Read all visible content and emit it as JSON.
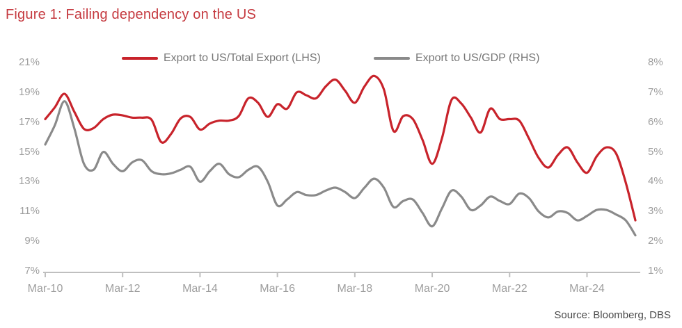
{
  "title": "Figure 1: Failing dependency on the US",
  "source": "Source: Bloomberg, DBS",
  "colors": {
    "title_text": "#C5393F",
    "series_lhs": "#C8232B",
    "series_rhs": "#8A8A8A",
    "axis_text": "#9E9E9E",
    "legend_text": "#777777",
    "axis_line": "#BFBFBF",
    "source_text": "#4A4A4A",
    "background": "#FFFFFF"
  },
  "legend": {
    "lhs_label": "Export to US/Total Export (LHS)",
    "rhs_label": "Export to US/GDP (RHS)"
  },
  "chart_data": {
    "type": "line",
    "title": "Figure 1: Failing dependency on the US",
    "x_unit": "quarter",
    "grid": "off",
    "legend_position": "top",
    "categories": [
      "Mar-10",
      "Jun-10",
      "Sep-10",
      "Dec-10",
      "Mar-11",
      "Jun-11",
      "Sep-11",
      "Dec-11",
      "Mar-12",
      "Jun-12",
      "Sep-12",
      "Dec-12",
      "Mar-13",
      "Jun-13",
      "Sep-13",
      "Dec-13",
      "Mar-14",
      "Jun-14",
      "Sep-14",
      "Dec-14",
      "Mar-15",
      "Jun-15",
      "Sep-15",
      "Dec-15",
      "Mar-16",
      "Jun-16",
      "Sep-16",
      "Dec-16",
      "Mar-17",
      "Jun-17",
      "Sep-17",
      "Dec-17",
      "Mar-18",
      "Jun-18",
      "Sep-18",
      "Dec-18",
      "Mar-19",
      "Jun-19",
      "Sep-19",
      "Dec-19",
      "Mar-20",
      "Jun-20",
      "Sep-20",
      "Dec-20",
      "Mar-21",
      "Jun-21",
      "Sep-21",
      "Dec-21",
      "Mar-22",
      "Jun-22",
      "Sep-22",
      "Dec-22",
      "Mar-23",
      "Jun-23",
      "Sep-23",
      "Dec-23",
      "Mar-24",
      "Jun-24",
      "Sep-24",
      "Dec-24",
      "Mar-25",
      "Jun-25"
    ],
    "x_tick_labels": [
      "Mar-10",
      "Mar-12",
      "Mar-14",
      "Mar-16",
      "Mar-18",
      "Mar-20",
      "Mar-22",
      "Mar-24"
    ],
    "left_axis": {
      "min": 7,
      "max": 21,
      "tick_step": 2,
      "ticks": [
        "21%",
        "19%",
        "17%",
        "15%",
        "13%",
        "11%",
        "9%",
        "7%"
      ]
    },
    "right_axis": {
      "min": 1,
      "max": 8,
      "tick_step": 1,
      "ticks": [
        "8%",
        "7%",
        "6%",
        "5%",
        "4%",
        "3%",
        "2%",
        "1%"
      ]
    },
    "series": [
      {
        "name": "Export to US/Total Export (LHS)",
        "axis": "left",
        "color_key": "series_lhs",
        "values": [
          17.2,
          18.0,
          18.9,
          17.7,
          16.55,
          16.6,
          17.2,
          17.5,
          17.45,
          17.3,
          17.3,
          17.15,
          15.65,
          16.2,
          17.25,
          17.35,
          16.5,
          16.9,
          17.1,
          17.1,
          17.4,
          18.6,
          18.3,
          17.35,
          18.2,
          17.9,
          19.0,
          18.8,
          18.6,
          19.4,
          19.85,
          19.1,
          18.3,
          19.4,
          20.1,
          19.2,
          16.4,
          17.4,
          17.2,
          15.8,
          14.2,
          15.9,
          18.5,
          18.25,
          17.3,
          16.3,
          17.9,
          17.2,
          17.2,
          17.1,
          15.9,
          14.6,
          13.95,
          14.8,
          15.3,
          14.3,
          13.6,
          14.7,
          15.3,
          14.9,
          12.95,
          10.4
        ]
      },
      {
        "name": "Export to US/GDP (RHS)",
        "axis": "right",
        "color_key": "series_rhs",
        "values": [
          5.25,
          5.9,
          6.7,
          5.8,
          4.6,
          4.4,
          5.0,
          4.6,
          4.35,
          4.65,
          4.72,
          4.35,
          4.25,
          4.28,
          4.4,
          4.5,
          4.0,
          4.35,
          4.6,
          4.25,
          4.15,
          4.4,
          4.5,
          4.0,
          3.2,
          3.4,
          3.65,
          3.55,
          3.55,
          3.7,
          3.8,
          3.65,
          3.45,
          3.8,
          4.1,
          3.8,
          3.15,
          3.35,
          3.4,
          2.95,
          2.5,
          3.1,
          3.7,
          3.5,
          3.05,
          3.2,
          3.5,
          3.35,
          3.25,
          3.6,
          3.45,
          3.0,
          2.8,
          3.0,
          2.95,
          2.7,
          2.85,
          3.05,
          3.05,
          2.9,
          2.7,
          2.2
        ]
      }
    ]
  }
}
